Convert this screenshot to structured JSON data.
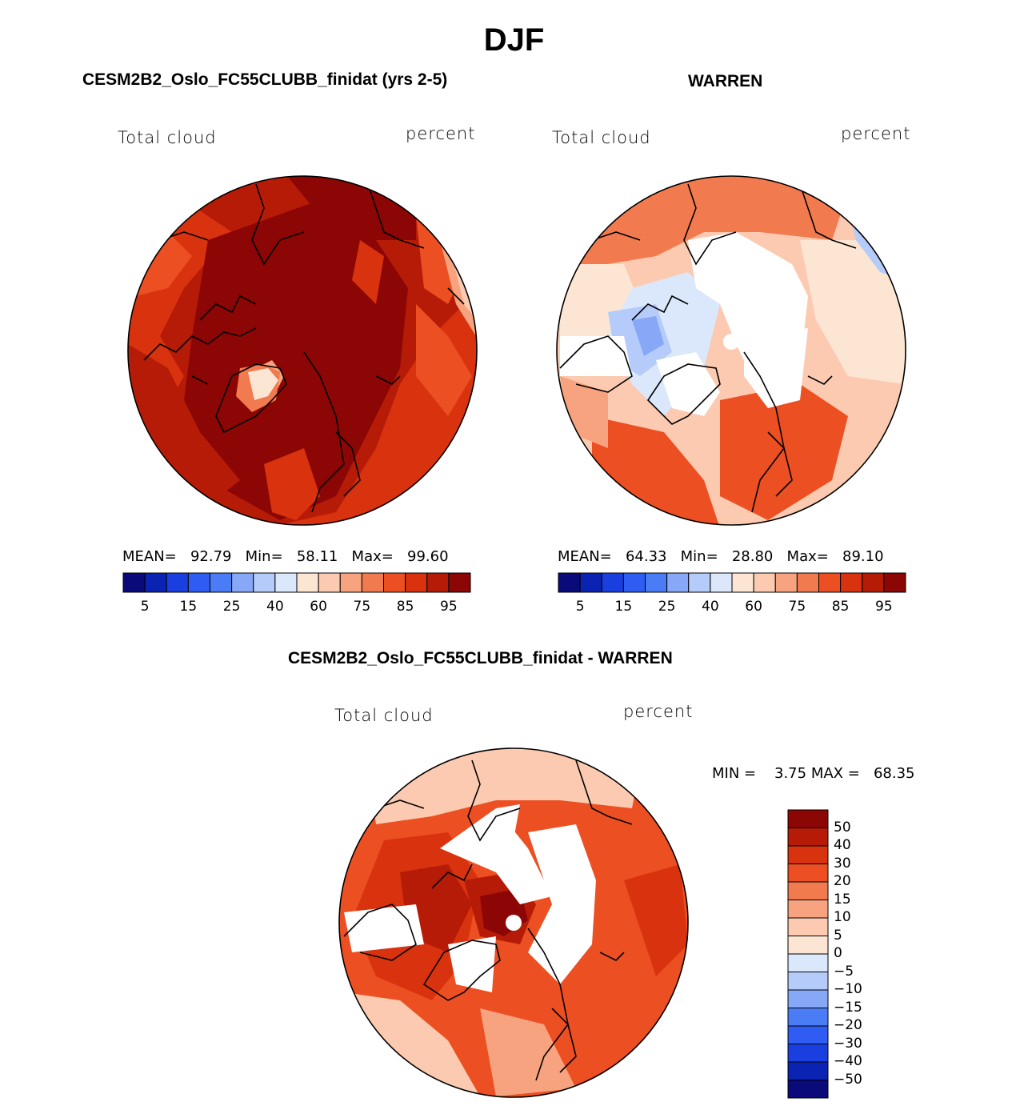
{
  "title": "DJF",
  "panels": {
    "model": {
      "title": "CESM2B2_Oslo_FC55CLUBB_finidat (yrs 2-5)",
      "left_label": "Total cloud",
      "right_label": "percent",
      "stats": {
        "mean_label": "MEAN=",
        "mean": "92.79",
        "min_label": "Min=",
        "min": "58.11",
        "max_label": "Max=",
        "max": "99.60"
      }
    },
    "obs": {
      "title": "WARREN",
      "left_label": "Total cloud",
      "right_label": "percent",
      "stats": {
        "mean_label": "MEAN=",
        "mean": "64.33",
        "min_label": "Min=",
        "min": "28.80",
        "max_label": "Max=",
        "max": "89.10"
      }
    },
    "diff": {
      "title": "CESM2B2_Oslo_FC55CLUBB_finidat - WARREN",
      "left_label": "Total cloud",
      "right_label": "percent",
      "minmax": {
        "min_label": "MIN =",
        "min": "3.75",
        "max_label": "MAX =",
        "max": "68.35"
      }
    }
  },
  "colorbars": {
    "abs": {
      "colors": [
        "#0a0a7a",
        "#0b23b3",
        "#1a3fe0",
        "#2f5cf2",
        "#4a7cf5",
        "#86a8f7",
        "#b5cbfa",
        "#dbe8fb",
        "#fde5d3",
        "#fbcab0",
        "#f7a37f",
        "#f27a4f",
        "#ec4f22",
        "#d8320e",
        "#b61b08",
        "#8b0605"
      ],
      "ticks": [
        "5",
        "15",
        "25",
        "40",
        "60",
        "75",
        "85",
        "95"
      ]
    },
    "diff": {
      "colors": [
        "#8b0605",
        "#b61b08",
        "#d8320e",
        "#ec4f22",
        "#f27a4f",
        "#f7a37f",
        "#fbcab0",
        "#fde5d3",
        "#dbe8fb",
        "#b5cbfa",
        "#86a8f7",
        "#4a7cf5",
        "#2f5cf2",
        "#1a3fe0",
        "#0b23b3",
        "#0a0a7a"
      ],
      "ticks": [
        "50",
        "40",
        "30",
        "20",
        "15",
        "10",
        "5",
        "0",
        "−5",
        "−10",
        "−15",
        "−20",
        "−30",
        "−40",
        "−50"
      ]
    }
  }
}
